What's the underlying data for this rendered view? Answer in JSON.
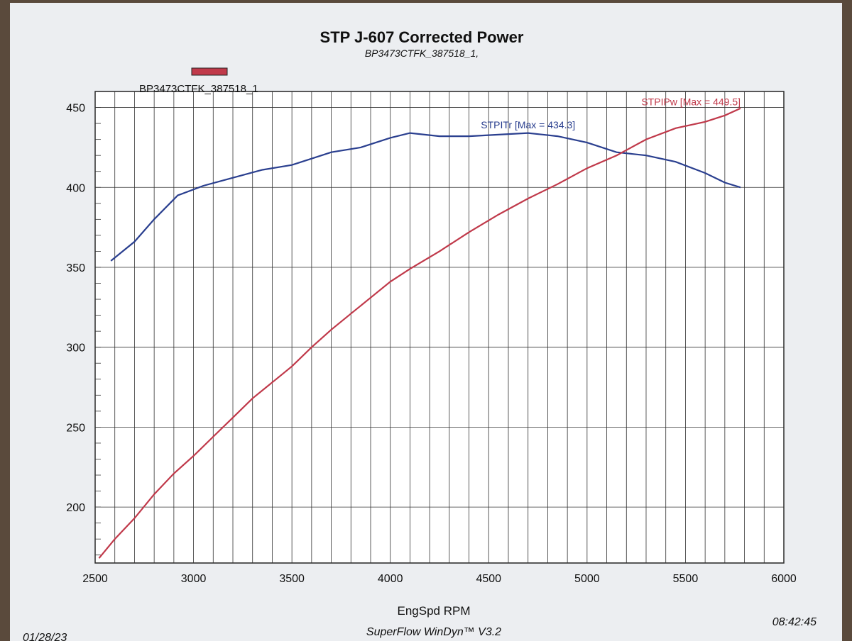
{
  "chart_data": {
    "type": "line",
    "title": "STP J-607 Corrected Power",
    "subtitle": "BP3473CTFK_387518_1,",
    "legend": {
      "entry": "BP3473CTFK_387518_1",
      "color": "#c0394a",
      "placement": "top-left"
    },
    "xlabel": "EngSpd RPM",
    "ylabel": "",
    "xlim": [
      2500,
      6000
    ],
    "ylim": [
      165,
      460
    ],
    "x_ticks": [
      "2500",
      "3000",
      "3500",
      "4000",
      "4500",
      "5000",
      "5500",
      "6000"
    ],
    "y_ticks": [
      "200",
      "250",
      "300",
      "350",
      "400",
      "450"
    ],
    "grid": true,
    "series": [
      {
        "name": "STPITr [Max = 434.3]",
        "color": "#2a3f8f",
        "x": [
          2580,
          2700,
          2800,
          2920,
          3050,
          3200,
          3350,
          3500,
          3600,
          3700,
          3850,
          4000,
          4100,
          4250,
          4400,
          4550,
          4700,
          4850,
          5000,
          5150,
          5300,
          5450,
          5600,
          5700,
          5780
        ],
        "y": [
          354,
          366,
          380,
          395,
          401,
          406,
          411,
          414,
          418,
          422,
          425,
          431,
          434,
          432,
          432,
          433,
          434,
          432,
          428,
          422,
          420,
          416,
          409,
          403,
          400
        ]
      },
      {
        "name": "STPIPw [Max = 449.5]",
        "color": "#c0394a",
        "x": [
          2520,
          2600,
          2700,
          2800,
          2900,
          3000,
          3100,
          3200,
          3300,
          3400,
          3500,
          3600,
          3700,
          3800,
          3900,
          4000,
          4100,
          4250,
          4400,
          4550,
          4700,
          4850,
          5000,
          5150,
          5300,
          5450,
          5600,
          5700,
          5780
        ],
        "y": [
          168,
          180,
          193,
          208,
          221,
          232,
          244,
          256,
          268,
          278,
          288,
          300,
          311,
          321,
          331,
          341,
          349,
          360,
          372,
          383,
          393,
          402,
          412,
          420,
          430,
          437,
          441,
          445,
          449.5
        ]
      }
    ],
    "footer_center": "SuperFlow WinDyn™ V3.2",
    "footer_right": "08:42:45",
    "footer_left": "01/28/23"
  }
}
